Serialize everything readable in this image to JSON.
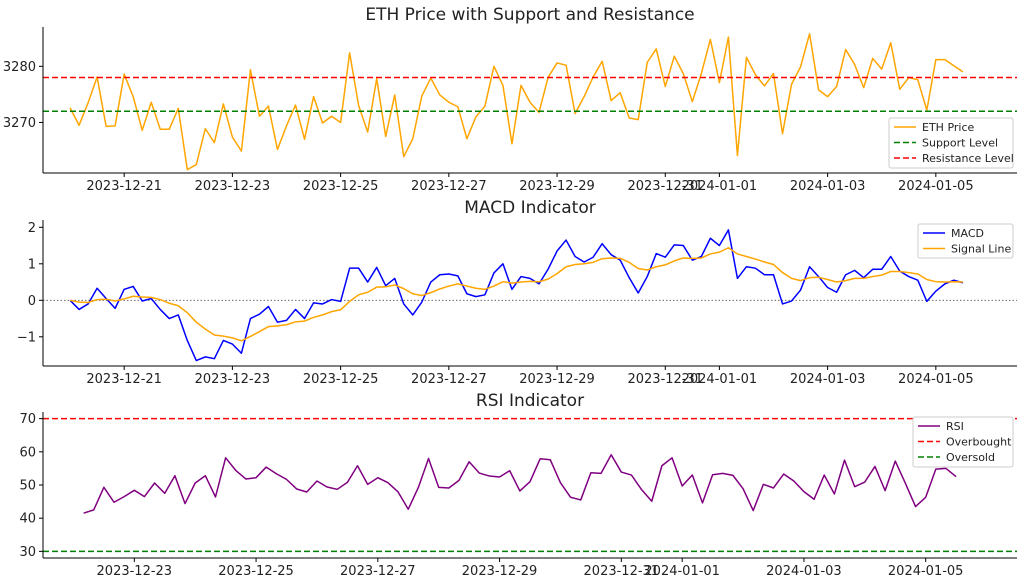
{
  "chart_data": [
    {
      "type": "line",
      "title": "ETH Price with Support and Resistance",
      "xlabel": "",
      "ylabel": "",
      "x_start": "2023-12-20T00:00",
      "x_step_hours": 4,
      "xlim": [
        "2023-12-19T12:00",
        "2024-01-06T12:00"
      ],
      "ylim": [
        3261.0,
        3287.0
      ],
      "xticks": [
        "2023-12-21",
        "2023-12-23",
        "2023-12-25",
        "2023-12-27",
        "2023-12-29",
        "2023-12-31",
        "2024-01-01",
        "2024-01-03",
        "2024-01-05"
      ],
      "yticks": [
        3270,
        3280
      ],
      "grid": false,
      "legend_position": "lower right",
      "series": [
        {
          "name": "ETH Price",
          "color": "#FFA500",
          "style": "solid",
          "values": [
            3272.6,
            3269.5,
            3273.5,
            3278.1,
            3269.3,
            3269.4,
            3278.6,
            3274.6,
            3268.6,
            3273.6,
            3268.8,
            3268.8,
            3272.5,
            3261.6,
            3262.5,
            3268.9,
            3266.4,
            3273.3,
            3267.4,
            3264.9,
            3279.4,
            3271.1,
            3272.9,
            3265.2,
            3269.4,
            3273.1,
            3267.0,
            3274.6,
            3269.9,
            3271.1,
            3270.0,
            3282.4,
            3273.0,
            3268.3,
            3277.8,
            3267.5,
            3274.9,
            3263.9,
            3267.1,
            3274.7,
            3277.9,
            3274.9,
            3273.6,
            3272.8,
            3267.1,
            3271.0,
            3272.9,
            3280.0,
            3276.6,
            3266.2,
            3276.6,
            3273.6,
            3271.8,
            3278.0,
            3280.6,
            3280.2,
            3271.6,
            3274.6,
            3278.1,
            3280.9,
            3273.9,
            3275.3,
            3270.8,
            3270.5,
            3280.7,
            3283.1,
            3276.4,
            3281.8,
            3278.7,
            3273.7,
            3278.7,
            3284.8,
            3277.1,
            3285.2,
            3264.1,
            3281.6,
            3278.5,
            3276.5,
            3278.7,
            3268.0,
            3276.8,
            3279.9,
            3285.8,
            3275.8,
            3274.6,
            3276.4,
            3283.0,
            3280.3,
            3276.2,
            3281.4,
            3279.5,
            3284.2,
            3275.9,
            3278.0,
            3277.6,
            3272.2,
            3281.2,
            3281.2,
            3280.1,
            3279.0
          ]
        },
        {
          "name": "Support Level",
          "color": "#008000",
          "style": "dashed",
          "hline": 3272.0
        },
        {
          "name": "Resistance Level",
          "color": "#FF0000",
          "style": "dashed",
          "hline": 3278.0
        }
      ]
    },
    {
      "type": "line",
      "title": "MACD Indicator",
      "xlabel": "",
      "ylabel": "",
      "x_start": "2023-12-20T00:00",
      "x_step_hours": 4,
      "xlim": [
        "2023-12-19T12:00",
        "2024-01-06T12:00"
      ],
      "ylim": [
        -1.8,
        2.2
      ],
      "xticks": [
        "2023-12-21",
        "2023-12-23",
        "2023-12-25",
        "2023-12-27",
        "2023-12-29",
        "2023-12-31",
        "2024-01-01",
        "2024-01-03",
        "2024-01-05"
      ],
      "yticks": [
        -1,
        0,
        1,
        2
      ],
      "ytick_labels": [
        "−1",
        "0",
        "1",
        "2"
      ],
      "zero_line": {
        "value": 0,
        "color": "#555555",
        "style": "dotted"
      },
      "grid": false,
      "legend_position": "upper right",
      "series": [
        {
          "name": "MACD",
          "color": "#0000FF",
          "style": "solid",
          "values": [
            0.0,
            -0.25,
            -0.1,
            0.33,
            0.05,
            -0.22,
            0.3,
            0.38,
            -0.02,
            0.05,
            -0.25,
            -0.5,
            -0.4,
            -1.1,
            -1.65,
            -1.55,
            -1.6,
            -1.1,
            -1.2,
            -1.45,
            -0.5,
            -0.38,
            -0.17,
            -0.6,
            -0.55,
            -0.25,
            -0.5,
            -0.07,
            -0.1,
            0.02,
            -0.03,
            0.88,
            0.88,
            0.5,
            0.9,
            0.4,
            0.6,
            -0.1,
            -0.4,
            -0.05,
            0.5,
            0.7,
            0.72,
            0.67,
            0.18,
            0.1,
            0.15,
            0.75,
            1.0,
            0.3,
            0.65,
            0.6,
            0.45,
            0.85,
            1.35,
            1.65,
            1.2,
            1.05,
            1.18,
            1.55,
            1.25,
            1.1,
            0.62,
            0.2,
            0.65,
            1.28,
            1.18,
            1.52,
            1.5,
            1.1,
            1.2,
            1.7,
            1.5,
            1.93,
            0.6,
            0.92,
            0.88,
            0.7,
            0.7,
            -0.1,
            -0.02,
            0.28,
            0.92,
            0.65,
            0.35,
            0.22,
            0.7,
            0.82,
            0.62,
            0.85,
            0.85,
            1.2,
            0.8,
            0.65,
            0.55,
            -0.03,
            0.25,
            0.45,
            0.55,
            0.48
          ]
        },
        {
          "name": "Signal Line",
          "color": "#FFA500",
          "style": "solid",
          "values": [
            0.0,
            -0.05,
            -0.06,
            0.02,
            0.03,
            -0.02,
            0.04,
            0.11,
            0.09,
            0.08,
            0.02,
            -0.08,
            -0.15,
            -0.34,
            -0.6,
            -0.79,
            -0.95,
            -0.98,
            -1.03,
            -1.11,
            -0.99,
            -0.86,
            -0.72,
            -0.7,
            -0.67,
            -0.59,
            -0.57,
            -0.47,
            -0.4,
            -0.31,
            -0.26,
            -0.03,
            0.15,
            0.22,
            0.36,
            0.37,
            0.42,
            0.32,
            0.18,
            0.13,
            0.21,
            0.31,
            0.39,
            0.45,
            0.39,
            0.33,
            0.3,
            0.39,
            0.51,
            0.47,
            0.5,
            0.52,
            0.51,
            0.58,
            0.73,
            0.92,
            0.98,
            1.0,
            1.04,
            1.14,
            1.16,
            1.15,
            1.04,
            0.87,
            0.83,
            0.92,
            0.97,
            1.08,
            1.16,
            1.15,
            1.16,
            1.27,
            1.32,
            1.44,
            1.27,
            1.2,
            1.13,
            1.05,
            0.98,
            0.76,
            0.6,
            0.54,
            0.62,
            0.63,
            0.57,
            0.5,
            0.54,
            0.6,
            0.6,
            0.65,
            0.69,
            0.79,
            0.79,
            0.76,
            0.72,
            0.57,
            0.51,
            0.5,
            0.51,
            0.5
          ]
        }
      ]
    },
    {
      "type": "line",
      "title": "RSI Indicator",
      "xlabel": "",
      "ylabel": "",
      "x_start": "2023-12-22T04:00",
      "x_step_hours": 4,
      "xlim": [
        "2023-12-21T12:00",
        "2024-01-06T12:00"
      ],
      "ylim": [
        28.0,
        72.0
      ],
      "xticks": [
        "2023-12-23",
        "2023-12-25",
        "2023-12-27",
        "2023-12-29",
        "2023-12-31",
        "2024-01-01",
        "2024-01-03",
        "2024-01-05"
      ],
      "yticks": [
        30,
        40,
        50,
        60,
        70
      ],
      "grid": false,
      "legend_position": "upper right",
      "series": [
        {
          "name": "RSI",
          "color": "#800080",
          "style": "solid",
          "values": [
            41.5,
            42.5,
            49.3,
            44.8,
            46.5,
            48.4,
            46.5,
            50.6,
            47.5,
            52.8,
            44.4,
            50.6,
            52.8,
            46.4,
            58.2,
            54.4,
            51.8,
            52.2,
            55.4,
            53.4,
            51.7,
            48.8,
            47.9,
            51.2,
            49.4,
            48.7,
            50.8,
            55.8,
            50.2,
            52.2,
            50.7,
            47.9,
            42.7,
            49.3,
            58.0,
            49.3,
            49.1,
            51.4,
            57.0,
            53.6,
            52.7,
            52.4,
            54.3,
            48.2,
            51.0,
            57.9,
            57.6,
            50.7,
            46.3,
            45.5,
            53.7,
            53.5,
            59.1,
            53.9,
            53.0,
            48.6,
            45.1,
            55.8,
            58.2,
            49.7,
            53.0,
            44.6,
            53.1,
            53.5,
            52.9,
            48.9,
            42.3,
            50.2,
            49.1,
            53.3,
            51.2,
            48.0,
            45.7,
            53.0,
            47.3,
            57.5,
            49.5,
            50.9,
            55.6,
            48.3,
            57.2,
            50.5,
            43.5,
            46.3,
            54.8,
            55.0,
            52.5
          ]
        },
        {
          "name": "Overbought",
          "color": "#FF0000",
          "style": "dashed",
          "hline": 70
        },
        {
          "name": "Oversold",
          "color": "#008000",
          "style": "dashed",
          "hline": 30
        }
      ]
    }
  ]
}
